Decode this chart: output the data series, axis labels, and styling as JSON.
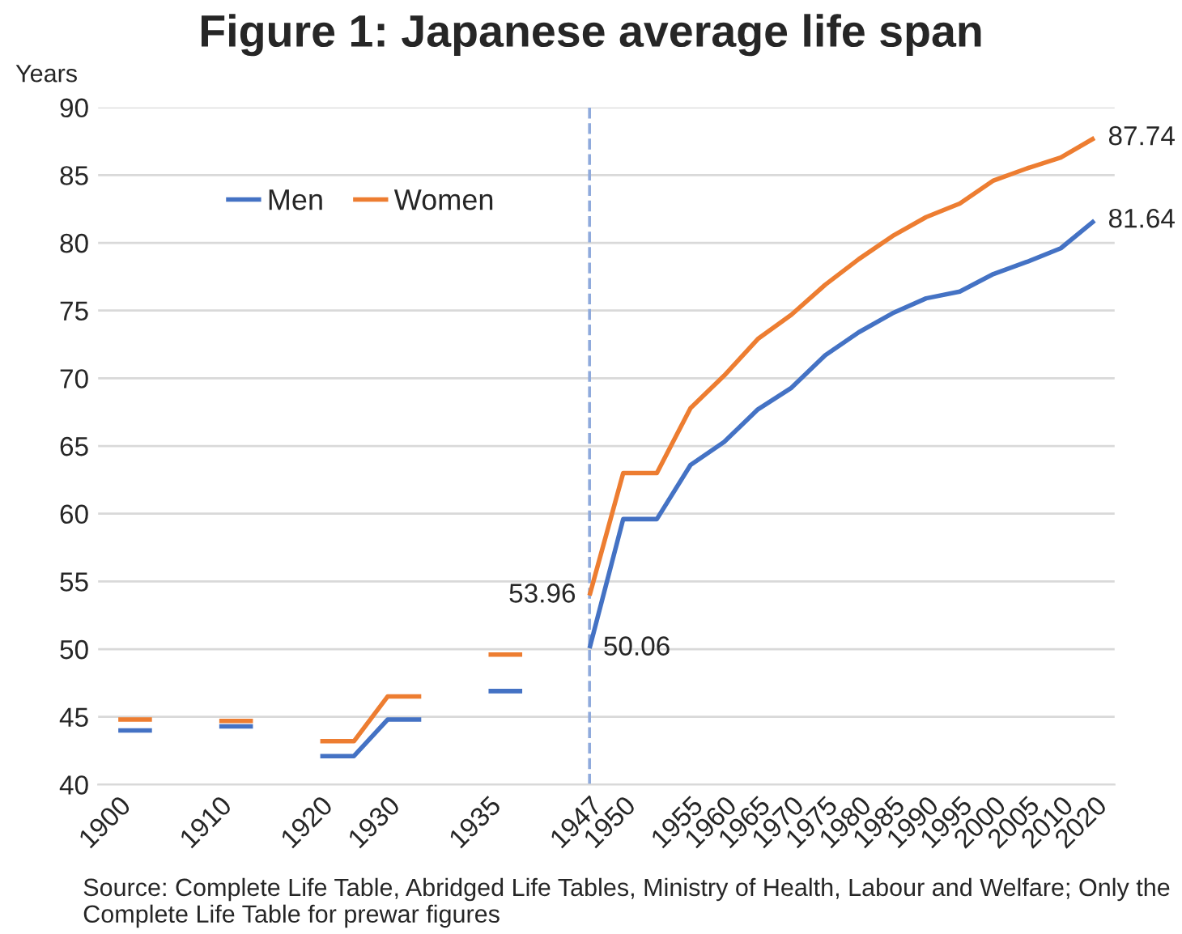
{
  "chart_data": {
    "type": "line",
    "title": "Figure 1: Japanese average life span",
    "ylabel": "Years",
    "categories": [
      "1900",
      null,
      null,
      "1910",
      null,
      null,
      "1920",
      null,
      "1930",
      null,
      null,
      "1935",
      null,
      null,
      "1947",
      "1950",
      null,
      "1955",
      "1960",
      "1965",
      "1970",
      "1975",
      "1980",
      "1985",
      "1990",
      "1995",
      "2000",
      "2005",
      "2010",
      "2020"
    ],
    "series": [
      {
        "name": "Men",
        "color": "#4472c4",
        "values": [
          44.0,
          44.0,
          null,
          44.3,
          44.3,
          null,
          42.1,
          42.1,
          44.8,
          44.8,
          null,
          46.9,
          46.9,
          null,
          50.06,
          59.6,
          59.6,
          63.6,
          65.3,
          67.7,
          69.3,
          71.7,
          73.4,
          74.8,
          75.9,
          76.4,
          77.7,
          78.6,
          79.6,
          81.64
        ],
        "value_labels": [
          null,
          null,
          null,
          null,
          null,
          null,
          null,
          null,
          null,
          null,
          null,
          null,
          null,
          null,
          "50.06",
          null,
          null,
          null,
          null,
          null,
          null,
          null,
          null,
          null,
          null,
          null,
          null,
          null,
          null,
          "81.64"
        ]
      },
      {
        "name": "Women",
        "color": "#ed7d31",
        "values": [
          44.8,
          44.8,
          null,
          44.7,
          44.7,
          null,
          43.2,
          43.2,
          46.5,
          46.5,
          null,
          49.6,
          49.6,
          null,
          53.96,
          63.0,
          63.0,
          67.8,
          70.2,
          72.9,
          74.7,
          76.9,
          78.8,
          80.5,
          81.9,
          82.9,
          84.6,
          85.5,
          86.3,
          87.74
        ],
        "value_labels": [
          null,
          null,
          null,
          null,
          null,
          null,
          null,
          null,
          null,
          null,
          null,
          null,
          null,
          null,
          "53.96",
          null,
          null,
          null,
          null,
          null,
          null,
          null,
          null,
          null,
          null,
          null,
          null,
          null,
          null,
          "87.74"
        ]
      }
    ],
    "ylim": [
      40,
      90
    ],
    "yticks": [
      40,
      45,
      50,
      55,
      60,
      65,
      70,
      75,
      80,
      85,
      90
    ],
    "grid": "y",
    "legend": "top left",
    "line_style": "solid",
    "ref_lines": [
      {
        "axis": "x",
        "value": "1947",
        "color": "#8faadc",
        "line_style": "dashed"
      }
    ],
    "annotations": [
      "Source: Complete Life Table, Abridged Life Tables, Ministry of Health, Labour and Welfare; Only the Complete Life Table for prewar figures"
    ]
  }
}
